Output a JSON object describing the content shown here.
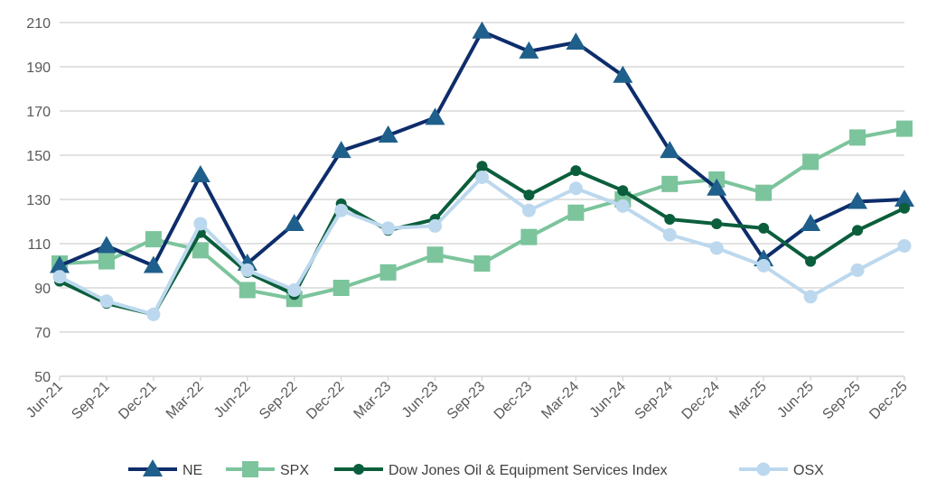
{
  "chart_data": {
    "type": "line",
    "categories": [
      "Jun-21",
      "Sep-21",
      "Dec-21",
      "Mar-22",
      "Jun-22",
      "Sep-22",
      "Dec-22",
      "Mar-23",
      "Jun-23",
      "Sep-23",
      "Dec-23",
      "Mar-24",
      "Jun-24",
      "Sep-24",
      "Dec-24",
      "Mar-25",
      "Jun-25",
      "Sep-25",
      "Dec-25"
    ],
    "ylim": [
      50,
      210
    ],
    "yticks": [
      50,
      70,
      90,
      110,
      130,
      150,
      170,
      190,
      210
    ],
    "grid": "horizontal",
    "legend": "bottom",
    "series": [
      {
        "name": "NE",
        "marker": "triangle",
        "line_color": "#0d2d6b",
        "marker_color": "#1f5f8b",
        "values": [
          100,
          109,
          100,
          141,
          101,
          119,
          152,
          159,
          167,
          206,
          197,
          201,
          186,
          152,
          135,
          103,
          119,
          129,
          130
        ]
      },
      {
        "name": "SPX",
        "marker": "square",
        "line_color": "#7cc49c",
        "marker_color": "#7cc49c",
        "values": [
          101,
          102,
          112,
          107,
          89,
          85,
          90,
          97,
          105,
          101,
          113,
          124,
          130,
          137,
          139,
          133,
          147,
          158,
          162
        ]
      },
      {
        "name": "Dow Jones Oil & Equipment Services Index",
        "marker": "circle",
        "line_color": "#0b5e3c",
        "marker_color": "#0b5e3c",
        "values": [
          93,
          83,
          78,
          115,
          97,
          87,
          128,
          116,
          121,
          145,
          132,
          143,
          134,
          121,
          119,
          117,
          102,
          116,
          126
        ]
      },
      {
        "name": "OSX",
        "marker": "circle",
        "line_color": "#bcd8ee",
        "marker_color": "#bcd8ee",
        "values": [
          95,
          84,
          78,
          119,
          98,
          89,
          125,
          117,
          118,
          140,
          125,
          135,
          127,
          114,
          108,
          100,
          86,
          98,
          109
        ]
      }
    ]
  }
}
